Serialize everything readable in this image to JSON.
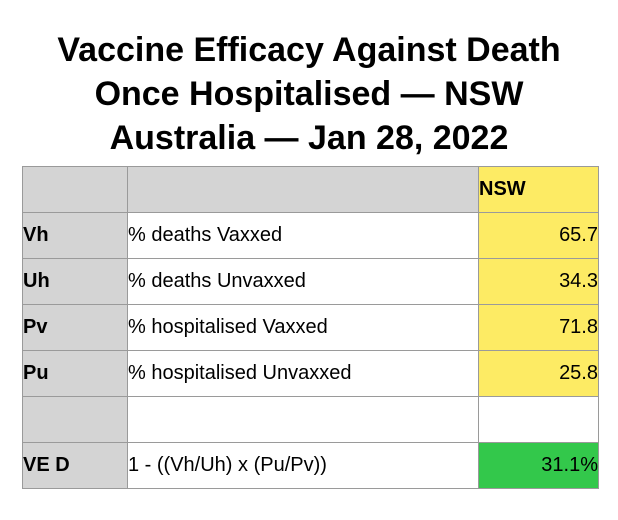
{
  "title": {
    "line1": "Vaccine Efficacy Against Death",
    "line2": "Once Hospitalised — NSW",
    "line3": "Australia — Jan 28, 2022"
  },
  "table": {
    "column_header": "NSW",
    "rows": [
      {
        "label": "Vh",
        "description": "% deaths Vaxxed",
        "value": "65.7"
      },
      {
        "label": "Uh",
        "description": "% deaths Unvaxxed",
        "value": "34.3"
      },
      {
        "label": "Pv",
        "description": "% hospitalised Vaxxed",
        "value": "71.8"
      },
      {
        "label": "Pu",
        "description": "% hospitalised Unvaxxed",
        "value": "25.8"
      },
      {
        "label": "",
        "description": "",
        "value": ""
      },
      {
        "label": "VE D",
        "description": "1 - ((Vh/Uh) x (Pu/Pv))",
        "value": "31.1%"
      }
    ]
  },
  "colors": {
    "header_gray": "#d4d4d4",
    "input_yellow": "#fdeb64",
    "result_green": "#33c84b",
    "border": "#9a9a9a"
  }
}
